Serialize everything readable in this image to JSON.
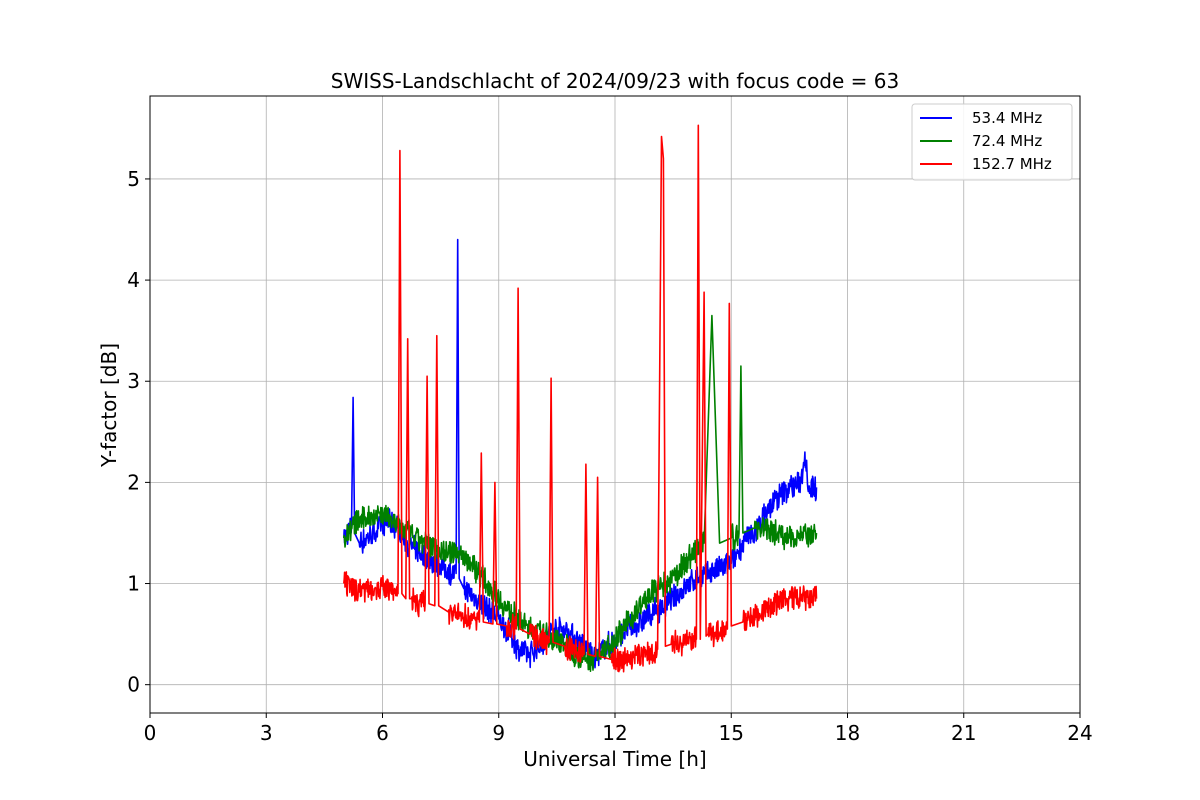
{
  "chart_data": {
    "type": "line",
    "title": "SWISS-Landschlacht of 2024/09/23 with focus code = 63",
    "xlabel": "Universal Time [h]",
    "ylabel": "Y-factor [dB]",
    "xlim": [
      0,
      24
    ],
    "ylim": [
      -0.28,
      5.82
    ],
    "xticks": [
      0,
      3,
      6,
      9,
      12,
      15,
      18,
      21,
      24
    ],
    "yticks": [
      0,
      1,
      2,
      3,
      4,
      5
    ],
    "grid": true,
    "legend_position": "top-right",
    "series": [
      {
        "name": "53.4 MHz",
        "color": "#0000ff",
        "x": [
          5.0,
          5.2,
          5.24,
          5.28,
          5.4,
          5.6,
          5.8,
          6.0,
          6.2,
          6.4,
          6.6,
          6.8,
          7.0,
          7.2,
          7.4,
          7.6,
          7.8,
          7.9,
          7.94,
          7.98,
          8.1,
          8.4,
          8.7,
          9.0,
          9.3,
          9.5,
          9.8,
          10.1,
          10.4,
          10.7,
          11.0,
          11.3,
          11.45,
          11.7,
          12.0,
          12.3,
          12.6,
          12.9,
          13.2,
          13.5,
          13.8,
          14.1,
          14.4,
          14.7,
          15.0,
          15.3,
          15.6,
          15.9,
          16.2,
          16.5,
          16.8,
          16.9,
          17.0,
          17.2
        ],
        "y": [
          1.45,
          1.55,
          2.84,
          1.5,
          1.4,
          1.45,
          1.5,
          1.6,
          1.6,
          1.55,
          1.4,
          1.35,
          1.3,
          1.25,
          1.2,
          1.15,
          1.1,
          1.1,
          4.4,
          1.05,
          0.95,
          0.85,
          0.75,
          0.65,
          0.5,
          0.35,
          0.3,
          0.4,
          0.55,
          0.55,
          0.45,
          0.35,
          0.25,
          0.35,
          0.45,
          0.55,
          0.6,
          0.7,
          0.75,
          0.85,
          0.95,
          1.05,
          1.1,
          1.15,
          1.2,
          1.4,
          1.5,
          1.7,
          1.85,
          1.95,
          2.0,
          2.3,
          1.95,
          1.95
        ]
      },
      {
        "name": "72.4 MHz",
        "color": "#008000",
        "x": [
          5.0,
          5.3,
          5.6,
          5.9,
          6.2,
          6.5,
          6.8,
          7.1,
          7.4,
          7.7,
          8.0,
          8.3,
          8.6,
          8.9,
          9.2,
          9.5,
          9.8,
          10.1,
          10.4,
          10.7,
          11.0,
          11.3,
          11.6,
          11.9,
          12.2,
          12.5,
          12.8,
          13.1,
          13.4,
          13.7,
          14.0,
          14.3,
          14.5,
          14.7,
          15.0,
          15.2,
          15.25,
          15.3,
          15.6,
          15.9,
          16.2,
          16.5,
          16.8,
          17.0,
          17.2
        ],
        "y": [
          1.45,
          1.6,
          1.65,
          1.7,
          1.65,
          1.55,
          1.45,
          1.4,
          1.35,
          1.3,
          1.3,
          1.2,
          1.05,
          0.9,
          0.75,
          0.65,
          0.55,
          0.5,
          0.45,
          0.4,
          0.3,
          0.25,
          0.3,
          0.4,
          0.55,
          0.7,
          0.85,
          0.95,
          1.0,
          1.15,
          1.3,
          1.4,
          3.65,
          1.4,
          1.45,
          1.5,
          3.15,
          1.5,
          1.55,
          1.55,
          1.5,
          1.45,
          1.5,
          1.45,
          1.5
        ]
      },
      {
        "name": "152.7 MHz",
        "color": "#ff0000",
        "x": [
          5.0,
          5.2,
          5.5,
          5.8,
          6.1,
          6.3,
          6.4,
          6.45,
          6.5,
          6.6,
          6.65,
          6.7,
          6.75,
          6.9,
          7.1,
          7.15,
          7.2,
          7.35,
          7.4,
          7.45,
          7.7,
          8.0,
          8.3,
          8.5,
          8.55,
          8.6,
          8.85,
          8.9,
          8.95,
          9.2,
          9.45,
          9.5,
          9.55,
          9.8,
          10.1,
          10.3,
          10.35,
          10.4,
          10.7,
          11.0,
          11.2,
          11.25,
          11.3,
          11.5,
          11.55,
          11.6,
          11.9,
          12.2,
          12.5,
          12.8,
          13.1,
          13.2,
          13.25,
          13.3,
          13.45,
          13.8,
          14.1,
          14.15,
          14.2,
          14.3,
          14.35,
          14.4,
          14.6,
          14.9,
          14.95,
          15.0,
          15.3,
          15.6,
          15.9,
          16.2,
          16.5,
          16.8,
          17.0,
          17.2
        ],
        "y": [
          1.0,
          0.95,
          0.95,
          0.95,
          0.95,
          0.9,
          0.9,
          5.28,
          0.9,
          0.85,
          3.42,
          0.85,
          0.85,
          0.8,
          0.8,
          3.05,
          0.8,
          0.78,
          3.45,
          0.78,
          0.72,
          0.68,
          0.65,
          0.62,
          2.29,
          0.62,
          0.6,
          2.0,
          0.6,
          0.58,
          0.55,
          3.92,
          0.55,
          0.5,
          0.45,
          0.42,
          3.03,
          0.42,
          0.38,
          0.33,
          0.3,
          2.18,
          0.3,
          0.28,
          2.05,
          0.28,
          0.25,
          0.25,
          0.28,
          0.3,
          0.35,
          5.42,
          5.2,
          0.38,
          0.4,
          0.42,
          0.45,
          5.53,
          0.45,
          3.88,
          0.48,
          0.5,
          0.52,
          0.55,
          3.77,
          0.58,
          0.62,
          0.68,
          0.75,
          0.82,
          0.85,
          0.85,
          0.85,
          0.85
        ]
      }
    ]
  }
}
